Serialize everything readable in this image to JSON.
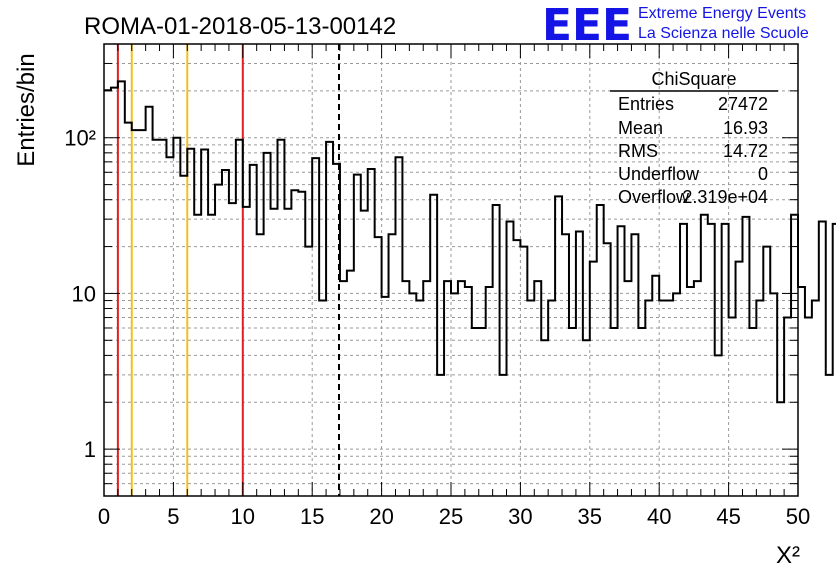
{
  "chart_data": {
    "type": "histogram",
    "title": "ROMA-01-2018-05-13-00142",
    "xlabel": "X²",
    "ylabel": "Entries/bin",
    "x_range": [
      0,
      50
    ],
    "y_range": [
      0.5,
      400
    ],
    "y_scale": "log",
    "grid": true,
    "bin_width": 0.5,
    "x_ticks": [
      "0",
      "5",
      "10",
      "15",
      "20",
      "25",
      "30",
      "35",
      "40",
      "45",
      "50"
    ],
    "y_ticks": [
      {
        "value": 1,
        "label": "1"
      },
      {
        "value": 10,
        "label": "10"
      },
      {
        "value": 100,
        "label": "10²"
      }
    ],
    "counts": [
      202,
      210,
      230,
      125,
      112,
      112,
      158,
      97,
      97,
      75,
      100,
      57,
      85,
      32,
      84,
      32,
      50,
      62,
      38,
      97,
      36,
      67,
      24,
      80,
      35,
      97,
      35,
      46,
      45,
      20,
      74,
      9,
      94,
      68,
      12,
      14,
      58,
      34,
      63,
      23,
      9.5,
      24,
      75,
      12,
      10,
      9,
      12,
      43,
      3,
      12,
      10,
      12,
      11,
      6,
      6,
      11,
      37,
      3,
      29,
      22,
      20,
      9,
      12,
      5,
      9,
      42,
      24,
      6,
      25,
      5,
      16,
      37,
      21,
      6,
      27,
      12,
      24,
      6,
      9,
      13,
      9,
      9,
      10,
      28,
      11,
      12,
      32,
      28,
      4,
      28,
      7,
      16,
      31,
      6,
      9,
      20,
      10,
      2,
      7,
      32,
      11,
      7,
      9,
      29,
      3,
      28,
      14,
      15,
      5,
      16,
      10,
      16,
      8,
      14,
      9,
      38,
      4,
      4,
      3,
      4.5,
      1,
      5,
      3,
      1,
      6,
      4,
      1,
      38,
      4,
      4
    ],
    "vlines": [
      {
        "x": 1,
        "color": "#e02020",
        "style": "solid"
      },
      {
        "x": 2,
        "color": "#f0c020",
        "style": "solid"
      },
      {
        "x": 6,
        "color": "#f0c020",
        "style": "solid"
      },
      {
        "x": 10,
        "color": "#e02020",
        "style": "solid"
      },
      {
        "x": 16.93,
        "color": "#000000",
        "style": "dashed"
      }
    ],
    "stats_box": {
      "title": "ChiSquare",
      "rows": [
        {
          "label": "Entries",
          "value": "27472"
        },
        {
          "label": "Mean",
          "value": "16.93"
        },
        {
          "label": "RMS",
          "value": "14.72"
        },
        {
          "label": "Underflow",
          "value": "0"
        },
        {
          "label": "Overflow",
          "value": "2.319e+04"
        }
      ]
    }
  },
  "logo": {
    "mark": "EEE",
    "line1": "Extreme Energy Events",
    "line2": "La Scienza nelle Scuole",
    "color": "#1414e6"
  }
}
